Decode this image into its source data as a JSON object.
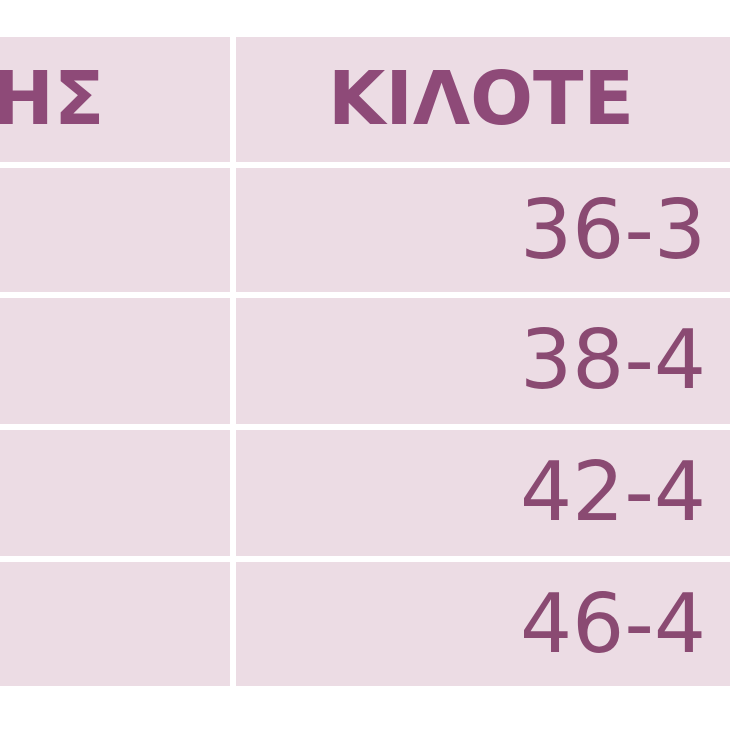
{
  "table": {
    "headers": [
      "ΗΣ",
      "ΚΙΛΟΤΕ"
    ],
    "rows": [
      {
        "col1": "",
        "col2": "36-3"
      },
      {
        "col1": "",
        "col2": "38-4"
      },
      {
        "col1": "",
        "col2": "42-4"
      },
      {
        "col1": "",
        "col2": "46-4"
      }
    ]
  },
  "colors": {
    "cell_bg": "#ecdce4",
    "text": "#8e4a78"
  }
}
